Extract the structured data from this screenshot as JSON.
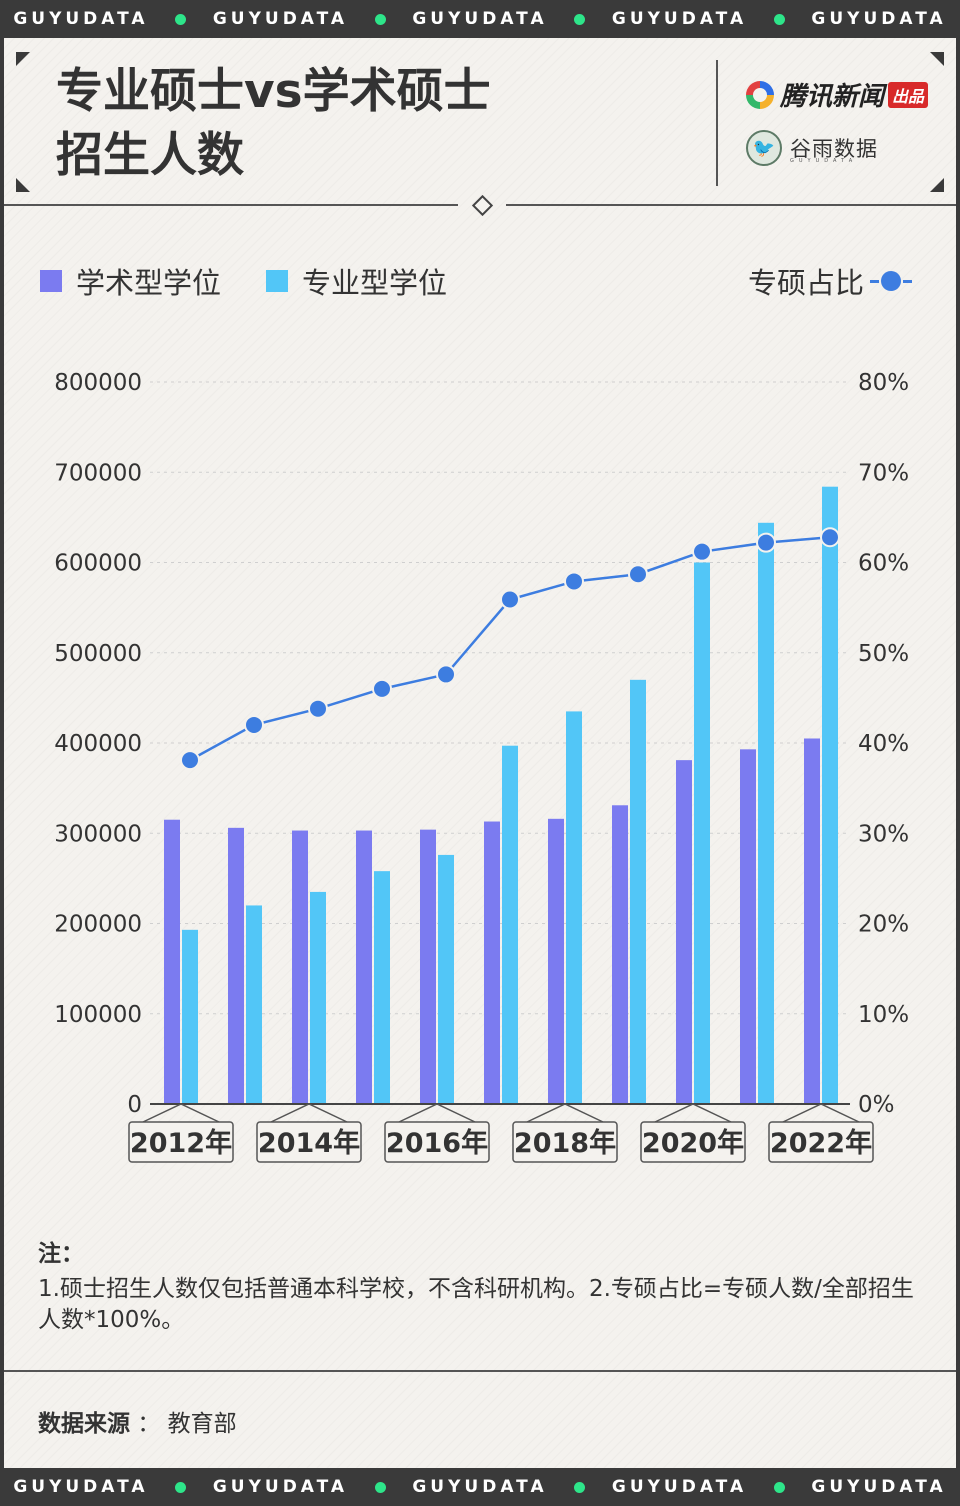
{
  "band": {
    "words": [
      "GUYUDATA",
      "GUYUDATA",
      "GUYUDATA",
      "GUYUDATA",
      "GUYUDATA"
    ]
  },
  "header": {
    "title_line1": "专业硕士vs学术硕士",
    "title_line2": "招生人数",
    "brand1_name": "腾讯新闻",
    "brand1_tag": "出品",
    "brand2_name": "谷雨数据",
    "brand2_sub": "GUYUDATA"
  },
  "legend": {
    "academic": "学术型学位",
    "professional": "专业型学位",
    "ratio": "专硕占比"
  },
  "colors": {
    "academic": "#7b7bf0",
    "professional": "#52c6f7",
    "ratio": "#3d7de0"
  },
  "chart_data": {
    "type": "bar+line",
    "title": "专业硕士vs学术硕士招生人数",
    "categories": [
      "2012",
      "2013",
      "2014",
      "2015",
      "2016",
      "2017",
      "2018",
      "2019",
      "2020",
      "2021",
      "2022"
    ],
    "x_tick_labels": [
      "2012年",
      "2014年",
      "2016年",
      "2018年",
      "2020年",
      "2022年"
    ],
    "series": [
      {
        "name": "学术型学位",
        "axis": "left",
        "type": "bar",
        "values": [
          315000,
          306000,
          303000,
          303000,
          304000,
          313000,
          316000,
          331000,
          381000,
          393000,
          405000
        ]
      },
      {
        "name": "专业型学位",
        "axis": "left",
        "type": "bar",
        "values": [
          193000,
          220000,
          235000,
          258000,
          276000,
          397000,
          435000,
          470000,
          600000,
          644000,
          684000
        ]
      },
      {
        "name": "专硕占比",
        "axis": "right",
        "type": "line",
        "unit": "%",
        "values": [
          38.1,
          42.0,
          43.8,
          46.0,
          47.6,
          55.9,
          57.9,
          58.7,
          61.2,
          62.2,
          62.8
        ]
      }
    ],
    "y_left": {
      "ticks": [
        "0",
        "100000",
        "200000",
        "300000",
        "400000",
        "500000",
        "600000",
        "700000",
        "800000"
      ],
      "range": [
        0,
        800000
      ]
    },
    "y_right": {
      "ticks": [
        "0%",
        "10%",
        "20%",
        "30%",
        "40%",
        "50%",
        "60%",
        "70%",
        "80%"
      ],
      "range": [
        0,
        80
      ]
    }
  },
  "note": {
    "title": "注：",
    "body": "1.硕士招生人数仅包括普通本科学校，不含科研机构。2.专硕占比=专硕人数/全部招生人数*100%。"
  },
  "source": {
    "label": "数据来源",
    "sep": "：",
    "value": "教育部"
  }
}
